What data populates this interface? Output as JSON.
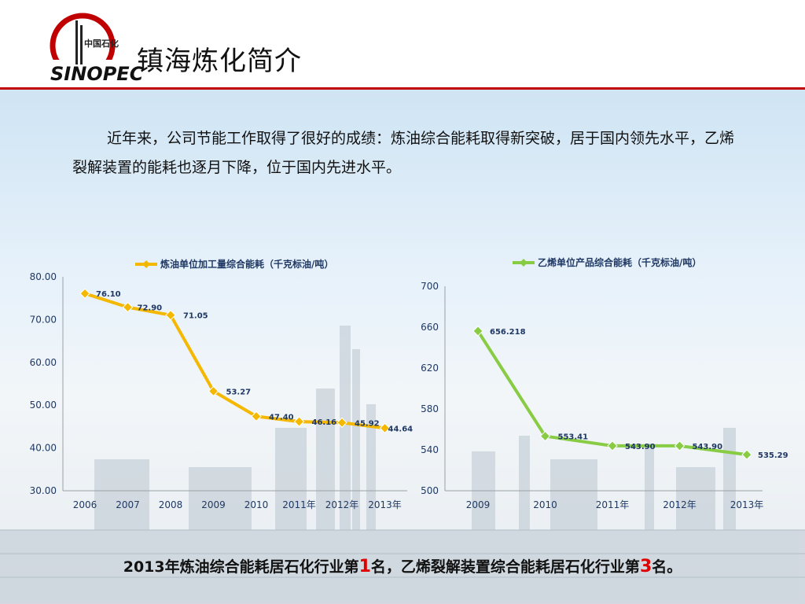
{
  "header": {
    "title": "镇海炼化简介",
    "logo_text": "中国石化",
    "logo_brand": "SINOPEC"
  },
  "intro": "近年来，公司节能工作取得了很好的成绩：炼油综合能耗取得新突破，居于国内领先水平，乙烯裂解装置的能耗也逐月下降，位于国内先进水平。",
  "footer": {
    "part1": "2013年炼油综合能耗居石化行业第",
    "rank1": "1",
    "part2": "名，乙烯裂解装置综合能耗居石化行业第",
    "rank2": "3",
    "part3": "名。"
  },
  "colors": {
    "accent_red": "#c00000",
    "series_orange": "#f5b800",
    "series_green": "#88cc44",
    "label_blue": "#1f3864"
  },
  "chart_data": [
    {
      "type": "line",
      "title": "",
      "series": [
        {
          "name": "炼油单位加工量综合能耗（千克标油/吨）",
          "values": [
            76.1,
            72.9,
            71.05,
            53.27,
            47.4,
            46.16,
            45.92,
            44.64
          ]
        }
      ],
      "categories": [
        "2006",
        "2007",
        "2008",
        "2009",
        "2010",
        "2011年",
        "2012年",
        "2013年"
      ],
      "data_labels": [
        "76.10",
        "72.90",
        "71.05",
        "53.27",
        "47.40",
        "46.16",
        "45.92",
        "44.64"
      ],
      "yticks": [
        "30.00",
        "40.00",
        "50.00",
        "60.00",
        "70.00",
        "80.00"
      ],
      "ylim": [
        30,
        80
      ],
      "legend": "top",
      "grid": false
    },
    {
      "type": "line",
      "title": "",
      "series": [
        {
          "name": "乙烯单位产品综合能耗（千克标油/吨）",
          "values": [
            656.218,
            553.41,
            543.9,
            543.9,
            535.29
          ]
        }
      ],
      "categories": [
        "2009",
        "2010",
        "2011年",
        "2012年",
        "2013年"
      ],
      "data_labels": [
        "656.218",
        "553.41",
        "543.90",
        "543.90",
        "535.29"
      ],
      "yticks": [
        "500",
        "540",
        "580",
        "620",
        "660",
        "700"
      ],
      "ylim": [
        500,
        700
      ],
      "legend": "top",
      "grid": false
    }
  ]
}
